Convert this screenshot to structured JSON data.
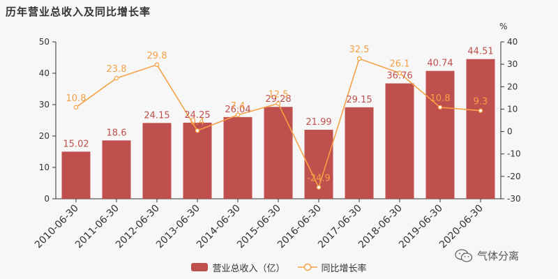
{
  "title": "历年营业总收入及同比增长率",
  "right_unit": "%",
  "watermark": "气体分离",
  "colors": {
    "bar": "#c0504d",
    "line": "#f4a147",
    "bar_label": "#c0504d",
    "line_label": "#f4a147",
    "axis": "#333333"
  },
  "chart_data": {
    "type": "bar",
    "categories": [
      "2010-06-30",
      "2011-06-30",
      "2012-06-30",
      "2013-06-30",
      "2014-06-30",
      "2015-06-30",
      "2016-06-30",
      "2017-06-30",
      "2018-06-30",
      "2019-06-30",
      "2020-06-30"
    ],
    "series": [
      {
        "name": "营业总收入（亿）",
        "type": "bar",
        "axis": "left",
        "values": [
          15.02,
          18.6,
          24.15,
          24.25,
          26.04,
          29.28,
          21.99,
          29.15,
          36.76,
          40.74,
          44.51
        ],
        "labels": [
          "15.02",
          "18.6",
          "24.15",
          "24.25",
          "26.04",
          "29.28",
          "21.99",
          "29.15",
          "36.76",
          "40.74",
          "44.51"
        ]
      },
      {
        "name": "同比增长率",
        "type": "line",
        "axis": "right",
        "values": [
          10.8,
          23.8,
          29.8,
          0.4,
          7.4,
          12.5,
          -24.9,
          32.5,
          26.1,
          10.8,
          9.3
        ],
        "labels": [
          "10.8",
          "23.8",
          "29.8",
          "0.4",
          "7.4",
          "12.5",
          "-24.9",
          "32.5",
          "26.1",
          "10.8",
          "9.3"
        ]
      }
    ],
    "ylim_left": [
      0,
      50
    ],
    "yticks_left": [
      0,
      10,
      20,
      30,
      40,
      50
    ],
    "ylim_right": [
      -30,
      40
    ],
    "yticks_right": [
      -30,
      -20,
      -10,
      0,
      10,
      20,
      30,
      40
    ],
    "grid": false,
    "legend_position": "bottom-center"
  }
}
